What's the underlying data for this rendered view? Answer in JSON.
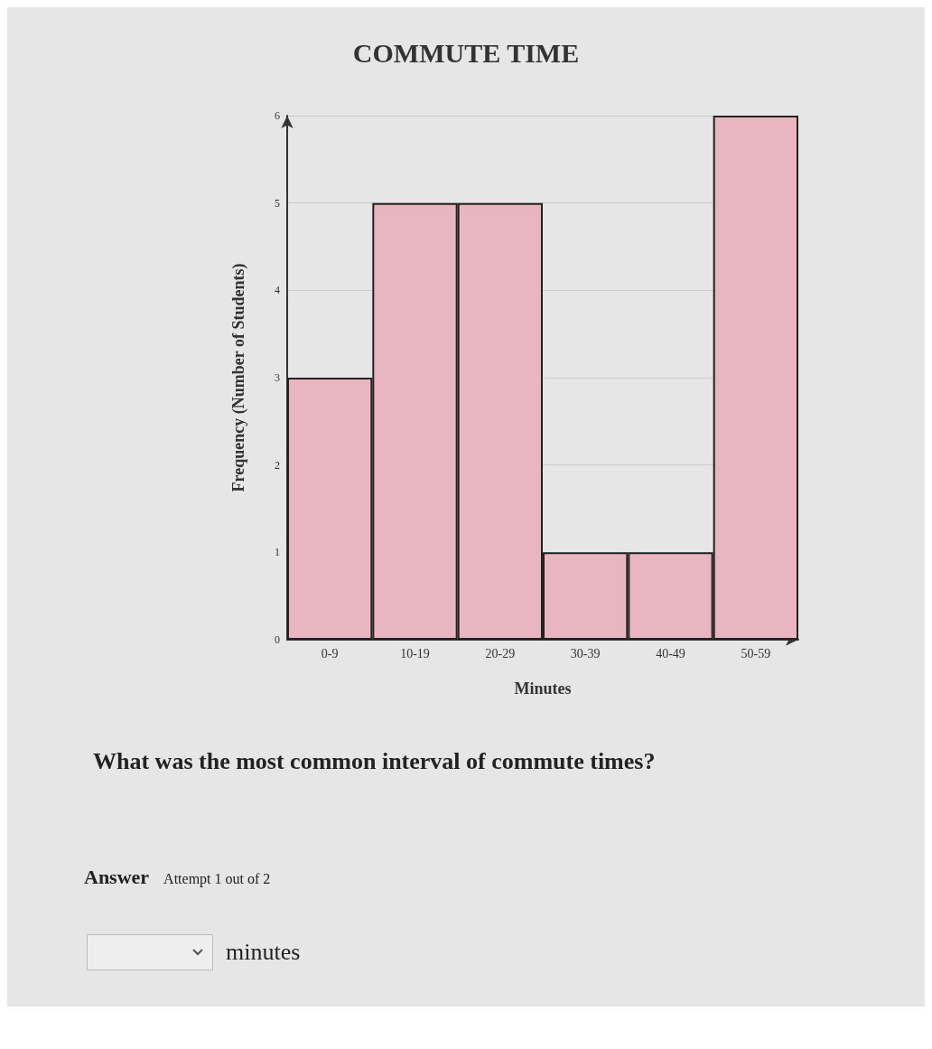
{
  "chart_data": {
    "type": "bar",
    "title": "COMMUTE TIME",
    "xlabel": "Minutes",
    "ylabel": "Frequency (Number of Students)",
    "categories": [
      "0-9",
      "10-19",
      "20-29",
      "30-39",
      "40-49",
      "50-59"
    ],
    "values": [
      3,
      5,
      5,
      1,
      1,
      6
    ],
    "color": "#e9b5c1",
    "ylim": [
      0,
      6
    ],
    "yticks": [
      0,
      1,
      2,
      3,
      4,
      5,
      6
    ],
    "grid": "y",
    "annotations": [
      "What was the most common interval of commute times?",
      "Answer",
      "Attempt 1 out of 2",
      "minutes"
    ]
  }
}
